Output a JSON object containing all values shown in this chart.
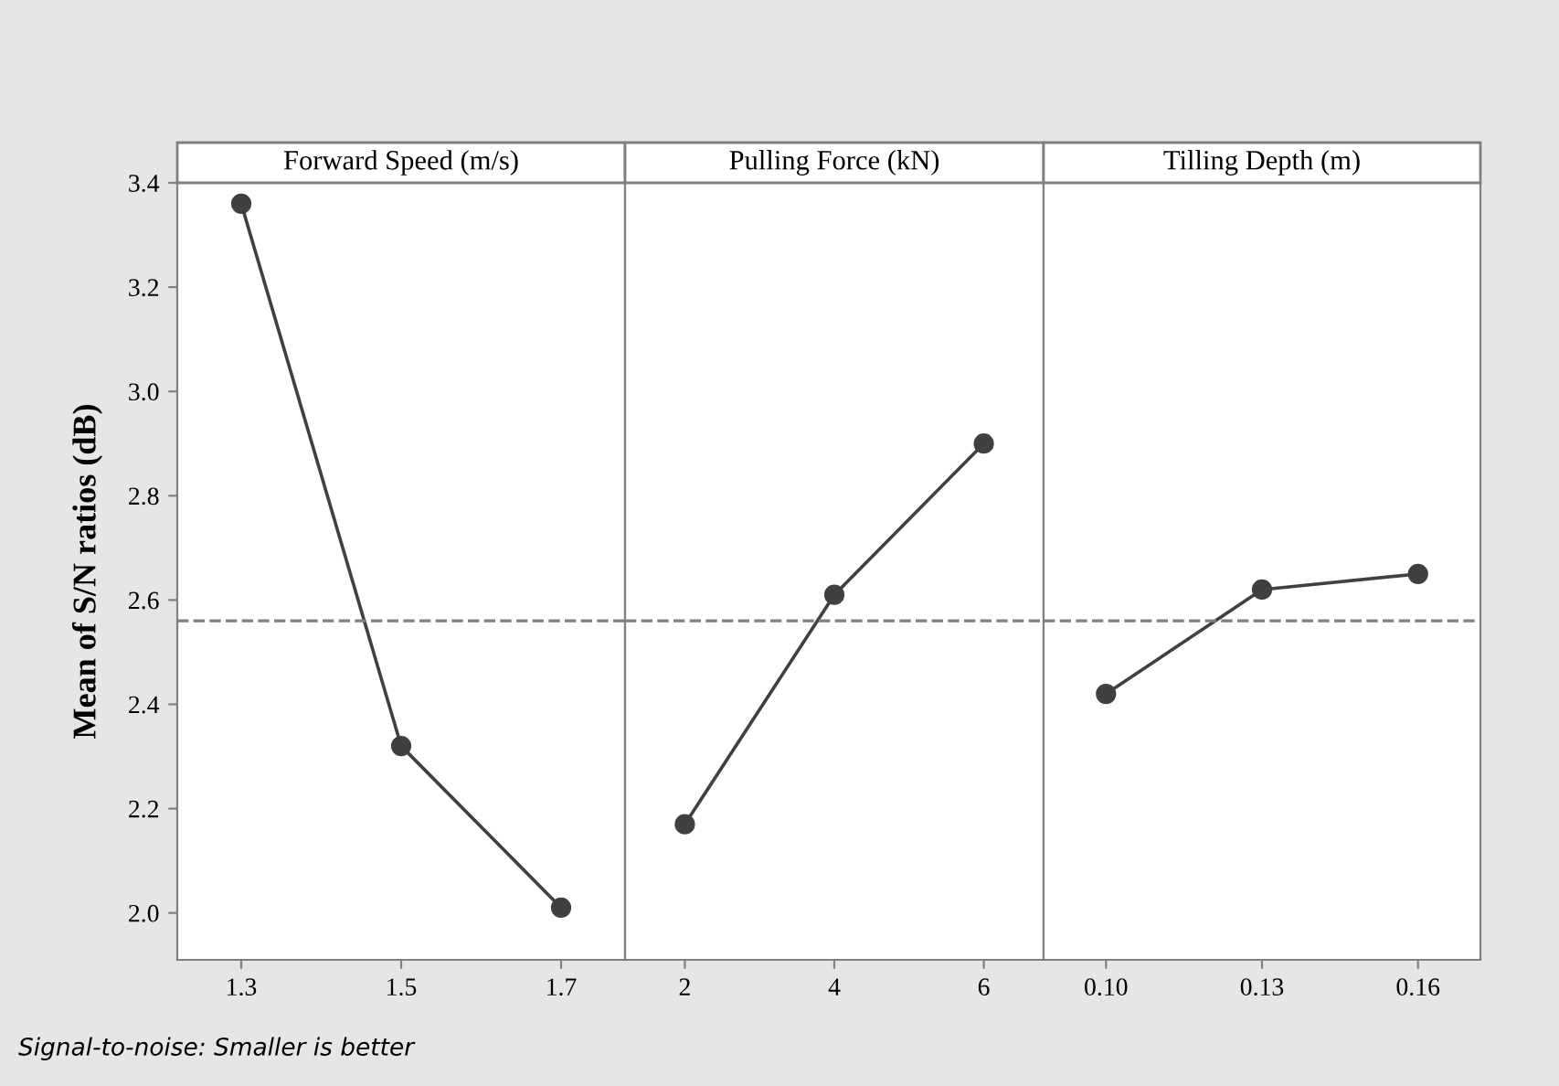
{
  "chart_data": [
    {
      "type": "line",
      "title": "Forward Speed (m/s)",
      "ylabel": "Mean of S/N ratios (dB)",
      "categories": [
        "1.3",
        "1.5",
        "1.7"
      ],
      "series": [
        {
          "color": "#404040",
          "values": [
            3.36,
            2.32,
            2.01
          ]
        }
      ],
      "ylim": [
        1.91,
        3.4
      ],
      "yticks": [
        {
          "value": 2.0,
          "label": "2.0"
        },
        2.2,
        2.4,
        2.6,
        2.8,
        {
          "value": 3.0,
          "label": "3.0"
        },
        3.2,
        3.4
      ],
      "ref_lines": [
        {
          "axis": "y",
          "value": 2.56,
          "color": "#808080",
          "line_style": "dashed"
        }
      ],
      "marker": "circle",
      "line_style": "solid",
      "grid": false,
      "annotations": [
        "Signal-to-noise: Smaller is better"
      ]
    },
    {
      "type": "line",
      "title": "Pulling Force (kN)",
      "categories": [
        "2",
        "4",
        "6"
      ],
      "series": [
        {
          "color": "#404040",
          "values": [
            2.17,
            2.61,
            2.9
          ]
        }
      ],
      "ylim": [
        1.91,
        3.4
      ],
      "tick_labels": "x",
      "ref_lines": [
        {
          "axis": "y",
          "value": 2.56,
          "color": "#808080",
          "line_style": "dashed"
        }
      ],
      "marker": "circle",
      "line_style": "solid",
      "grid": false
    },
    {
      "type": "line",
      "title": "Tilling Depth (m)",
      "categories": [
        "0.10",
        "0.13",
        "0.16"
      ],
      "series": [
        {
          "color": "#404040",
          "values": [
            2.42,
            2.62,
            2.65
          ]
        }
      ],
      "ylim": [
        1.91,
        3.4
      ],
      "tick_labels": "x",
      "ref_lines": [
        {
          "axis": "y",
          "value": 2.56,
          "color": "#808080",
          "line_style": "dashed"
        }
      ],
      "marker": "circle",
      "line_style": "solid",
      "grid": false
    }
  ]
}
